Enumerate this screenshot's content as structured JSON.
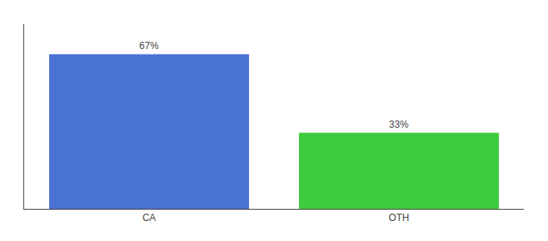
{
  "chart_data": {
    "type": "bar",
    "categories": [
      "CA",
      "OTH"
    ],
    "values": [
      67,
      33
    ],
    "value_labels": [
      "67%",
      "33%"
    ],
    "colors": [
      "#4a72d4",
      "#3dcc3d"
    ],
    "ylim": [
      0,
      80
    ],
    "yticks": [],
    "tick_labels": "x",
    "data_labels": true,
    "grid": false
  }
}
